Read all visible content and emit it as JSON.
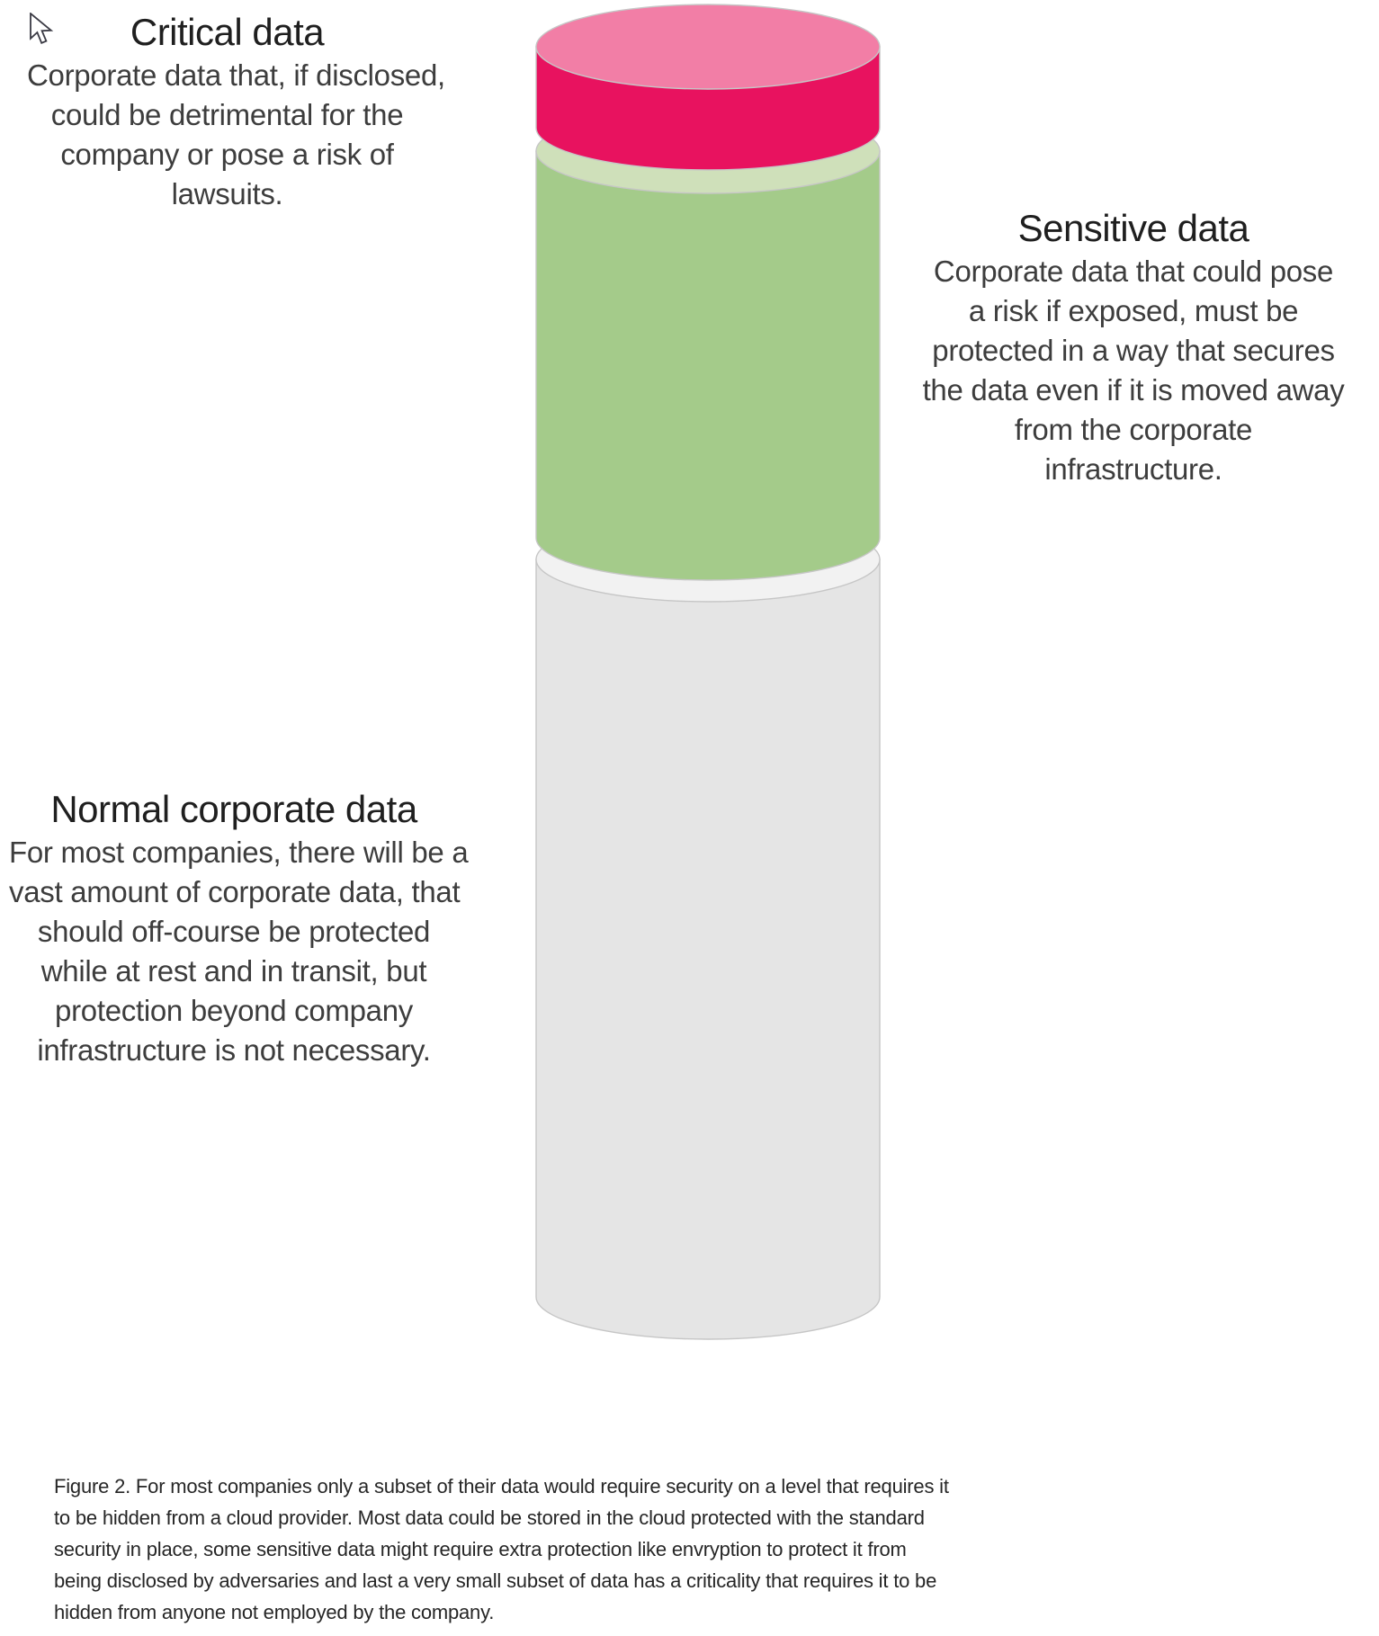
{
  "page": {
    "background": "#ffffff"
  },
  "blocks": {
    "critical": {
      "title": "Critical data",
      "description": "Corporate data that, if disclosed,\ncould be detrimental for the\ncompany or pose a risk of\nlawsuits."
    },
    "sensitive": {
      "title": "Sensitive data",
      "description": "Corporate data that could pose\na risk if exposed, must be\nprotected in a way that secures\nthe data even if it is moved away\nfrom the corporate\ninfrastructure."
    },
    "normal": {
      "title": "Normal corporate data",
      "description": "For most companies, there will be a\nvast amount of corporate data, that\nshould off-course be protected\nwhile at rest and in transit, but\nprotection beyond company\ninfrastructure is not necessary."
    }
  },
  "diagram": {
    "type": "stacked-cylinder",
    "outline_color": "#c6c6c6",
    "segments": [
      {
        "id": "critical",
        "label": "Critical data",
        "top_color": "#f27ea6",
        "side_color": "#e8125f",
        "relative_size": "smallest"
      },
      {
        "id": "sensitive",
        "label": "Sensitive data",
        "top_color": "#cfe0ba",
        "side_color": "#a4cb8a",
        "relative_size": "medium"
      },
      {
        "id": "normal",
        "label": "Normal corporate data",
        "top_color": "#f2f2f2",
        "side_color": "#e5e5e5",
        "relative_size": "largest"
      }
    ]
  },
  "caption": {
    "text": "Figure 2. For most companies only a subset of their data would require security on a level that requires it\nto be hidden from a cloud provider. Most data could be stored in the cloud protected with the standard\nsecurity in place, some sensitive data might require extra protection like envryption to protect it from\nbeing disclosed by adversaries and last a very small subset of data has a criticality that requires it to be\nhidden from anyone not employed by the company."
  },
  "cursor": {
    "name": "arrow-pointer"
  }
}
